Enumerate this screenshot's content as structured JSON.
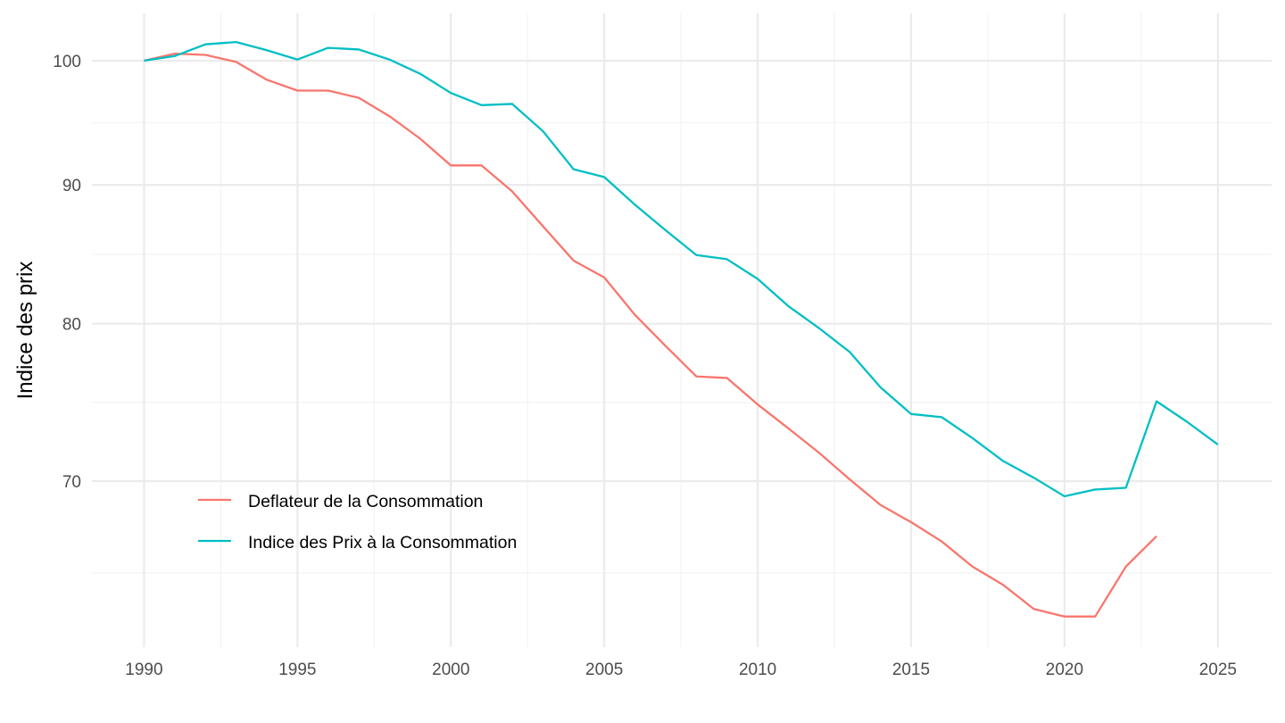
{
  "chart_data": {
    "type": "line",
    "title": "",
    "xlabel": "",
    "ylabel": "Indice des prix",
    "y_scale": "log",
    "xlim": [
      1988.3,
      2026.75
    ],
    "ylim": [
      60.8,
      104.1
    ],
    "x_ticks": [
      1990,
      1995,
      2000,
      2005,
      2010,
      2015,
      2020,
      2025
    ],
    "x_tick_labels": [
      "1990",
      "1995",
      "2000",
      "2005",
      "2010",
      "2015",
      "2020",
      "2025"
    ],
    "y_ticks": [
      70,
      80,
      90,
      100
    ],
    "y_tick_labels": [
      "70",
      "80",
      "90",
      "100"
    ],
    "grid": true,
    "legend_position": "inside-bottom-left",
    "series": [
      {
        "name": "Deflateur de la Consommation",
        "color": "#F8766D",
        "x": [
          1990,
          1991,
          1992,
          1993,
          1994,
          1995,
          1996,
          1997,
          1998,
          1999,
          2000,
          2001,
          2002,
          2003,
          2004,
          2005,
          2006,
          2007,
          2008,
          2009,
          2010,
          2011,
          2012,
          2013,
          2014,
          2015,
          2016,
          2017,
          2018,
          2019,
          2020,
          2021,
          2022,
          2023
        ],
        "values": [
          100.0,
          100.6,
          100.5,
          99.9,
          98.4,
          97.5,
          97.5,
          96.9,
          95.4,
          93.6,
          91.5,
          91.5,
          89.5,
          86.9,
          84.4,
          83.2,
          80.6,
          78.5,
          76.5,
          76.4,
          74.7,
          73.2,
          71.7,
          70.1,
          68.6,
          67.6,
          66.5,
          65.1,
          64.1,
          62.8,
          62.4,
          62.4,
          65.1,
          66.8
        ]
      },
      {
        "name": "Indice des Prix à la Consommation",
        "color": "#00BFC4",
        "x": [
          1990,
          1991,
          1992,
          1993,
          1994,
          1995,
          1996,
          1997,
          1998,
          1999,
          2000,
          2001,
          2002,
          2003,
          2004,
          2005,
          2006,
          2007,
          2008,
          2009,
          2010,
          2011,
          2012,
          2013,
          2014,
          2015,
          2016,
          2017,
          2018,
          2019,
          2020,
          2021,
          2022,
          2023,
          2024,
          2025
        ],
        "values": [
          100.0,
          100.4,
          101.4,
          101.6,
          100.9,
          100.1,
          101.1,
          100.96,
          100.1,
          98.9,
          97.3,
          96.3,
          96.4,
          94.2,
          91.2,
          90.6,
          88.5,
          86.6,
          84.8,
          84.5,
          83.1,
          81.2,
          79.7,
          78.1,
          75.8,
          74.1,
          73.9,
          72.6,
          71.2,
          70.2,
          69.1,
          69.5,
          69.6,
          74.9,
          73.6,
          72.2
        ]
      }
    ]
  }
}
